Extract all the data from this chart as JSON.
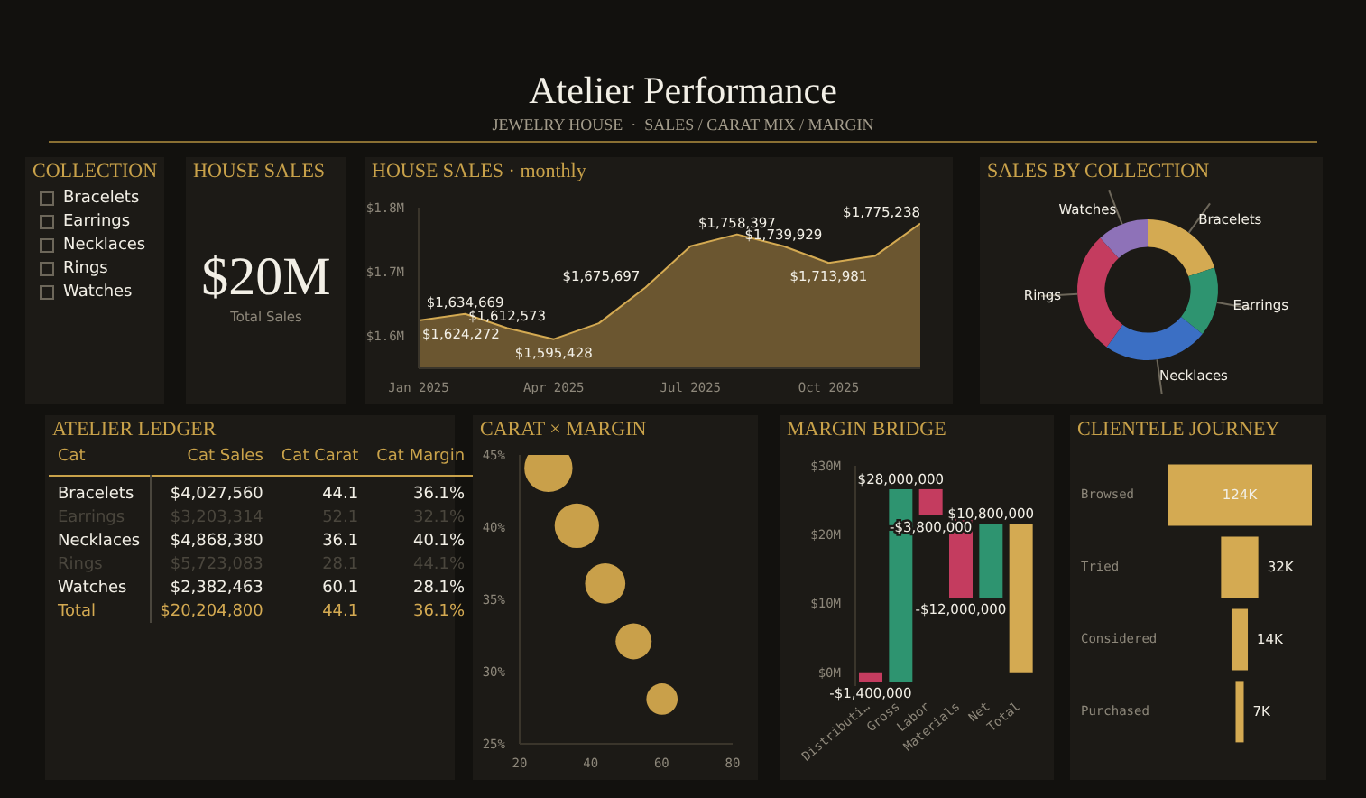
{
  "chart_data": [
    {
      "type": "other",
      "title": "Atelier Performance",
      "subtitle": "JEWELRY HOUSE  ·  SALES / CARAT MIX / MARGIN"
    },
    {
      "type": "other",
      "title": "COLLECTION",
      "categories": [
        "Bracelets",
        "Earrings",
        "Necklaces",
        "Rings",
        "Watches"
      ]
    },
    {
      "type": "other",
      "title": "HOUSE SALES",
      "annotations": [
        "$20M",
        "Total Sales"
      ]
    },
    {
      "type": "area",
      "title": "HOUSE SALES · monthly",
      "x": [
        "2025-01",
        "2025-02",
        "2025-03",
        "2025-04",
        "2025-05",
        "2025-06",
        "2025-07",
        "2025-08",
        "2025-09",
        "2025-10",
        "2025-11",
        "2025-12"
      ],
      "values": [
        1624272,
        1634669,
        1612573,
        1595428,
        1620000,
        1675697,
        1740000,
        1758397,
        1739929,
        1713981,
        1725000,
        1775238
      ],
      "value_labels": [
        "$1,624,272",
        "$1,634,669",
        "$1,612,573",
        "$1,595,428",
        null,
        "$1,675,697",
        null,
        "$1,758,397",
        "$1,739,929",
        "$1,713,981",
        null,
        "$1,775,238"
      ],
      "color": "#d4aa52",
      "xlim": [
        "2025-01",
        "2025-12"
      ],
      "xticks": [
        {
          "value": "2025-01",
          "label": "Jan 2025"
        },
        {
          "value": "2025-04",
          "label": "Apr 2025"
        },
        {
          "value": "2025-07",
          "label": "Jul 2025"
        },
        {
          "value": "2025-10",
          "label": "Oct 2025"
        }
      ],
      "ylim": [
        1550000,
        1800000
      ],
      "yticks": [
        {
          "value": 1600000,
          "label": "$1.6M"
        },
        {
          "value": 1700000,
          "label": "$1.7M"
        },
        {
          "value": 1800000,
          "label": "$1.8M"
        }
      ],
      "grid": false,
      "legend": false
    },
    {
      "type": "donut",
      "title": "SALES BY COLLECTION",
      "categories": [
        "Bracelets",
        "Earrings",
        "Necklaces",
        "Rings",
        "Watches"
      ],
      "values": [
        19.9,
        15.9,
        24.1,
        28.3,
        11.8
      ],
      "colors": [
        "#d4aa52",
        "#2e9470",
        "#3b6fc4",
        "#c43c5f",
        "#8e72b8"
      ]
    },
    {
      "type": "other",
      "title": "ATELIER LEDGER",
      "data_labels": true,
      "annotations": [
        "Cat"
      ],
      "categories": [
        "Bracelets",
        "Earrings",
        "Necklaces",
        "Rings",
        "Watches",
        "Total"
      ],
      "colors": [
        "#f2efe6",
        "#4a463d",
        "#f2efe6",
        "#4a463d",
        "#f2efe6",
        "#d4aa52"
      ],
      "series": [
        {
          "name": "Cat Sales",
          "values": [
            4027560,
            3203314,
            4868380,
            5723083,
            2382463,
            20204800
          ],
          "value_labels": [
            "$4,027,560",
            "$3,203,314",
            "$4,868,380",
            "$5,723,083",
            "$2,382,463",
            "$20,204,800"
          ]
        },
        {
          "name": "Cat Carat",
          "values": [
            44.1,
            52.1,
            36.1,
            28.1,
            60.1,
            44.1
          ]
        },
        {
          "name": "Cat Margin",
          "values": [
            36.1,
            32.1,
            40.1,
            44.1,
            28.1,
            36.1
          ],
          "value_labels": [
            "36.1%",
            "32.1%",
            "40.1%",
            "44.1%",
            "28.1%",
            "36.1%"
          ]
        }
      ]
    },
    {
      "type": "bubble",
      "title": "CARAT × MARGIN",
      "x": [
        28.1,
        36.1,
        44.1,
        52.1,
        60.1
      ],
      "values": [
        44.1,
        40.1,
        36.1,
        32.1,
        28.1
      ],
      "sizes": [
        1,
        0.85,
        0.7,
        0.56,
        0.42
      ],
      "color": "#c9a04a",
      "xlim": [
        20,
        80
      ],
      "xticks": [
        20,
        40,
        60,
        80
      ],
      "ylim": [
        25,
        45
      ],
      "yticks": [
        {
          "value": 25,
          "label": "25%"
        },
        {
          "value": 30,
          "label": "30%"
        },
        {
          "value": 35,
          "label": "35%"
        },
        {
          "value": 40,
          "label": "40%"
        },
        {
          "value": 45,
          "label": "45%"
        }
      ],
      "grid": false
    },
    {
      "type": "bar",
      "title": "MARGIN BRIDGE",
      "categories": [
        "Distributi…",
        "Gross",
        "Labor",
        "Materials",
        "Net",
        "Total"
      ],
      "values": [
        -1400000,
        28000000,
        -3800000,
        -12000000,
        10800000,
        21600000
      ],
      "base": [
        0,
        -1400000,
        26600000,
        22800000,
        10800000,
        0
      ],
      "colors": [
        "#c43c5f",
        "#2e9470",
        "#c43c5f",
        "#c43c5f",
        "#2e9470",
        "#d4aa52"
      ],
      "value_labels": [
        "-$1,400,000",
        "$28,000,000",
        "-$3,800,000",
        "-$12,000,000",
        "$10,800,000",
        null
      ],
      "ylim": [
        -2000000,
        30000000
      ],
      "yticks": [
        {
          "value": 0,
          "label": "$0M"
        },
        {
          "value": 10000000,
          "label": "$10M"
        },
        {
          "value": 20000000,
          "label": "$20M"
        },
        {
          "value": 30000000,
          "label": "$30M"
        }
      ],
      "grid": false
    },
    {
      "type": "other",
      "title": "CLIENTELE JOURNEY",
      "categories": [
        "Browsed",
        "Tried",
        "Considered",
        "Purchased"
      ],
      "values": [
        124000,
        32000,
        14000,
        7000
      ],
      "value_labels": [
        "124K",
        "32K",
        "14K",
        "7K"
      ]
    }
  ]
}
